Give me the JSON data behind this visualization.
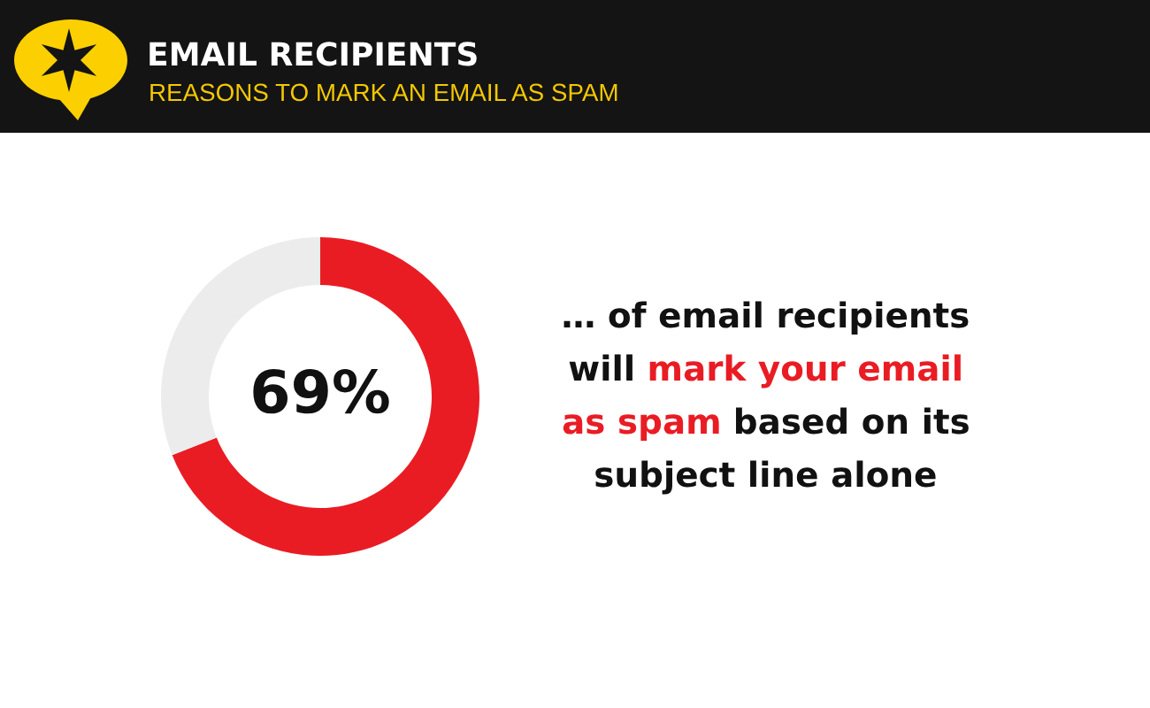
{
  "chart_data": {
    "type": "donut",
    "title": "EMAIL RECIPIENTS",
    "subtitle": "REASONS TO MARK AN EMAIL AS SPAM",
    "categories": [
      null,
      null
    ],
    "values": [
      69,
      31
    ],
    "colors": [
      "#e91c24",
      "#ececec"
    ],
    "value_labels": [
      "69%",
      null
    ],
    "annotations": [
      "… of email recipients",
      "will",
      "mark your email",
      "as spam",
      "based on its",
      "subject line alone"
    ]
  }
}
